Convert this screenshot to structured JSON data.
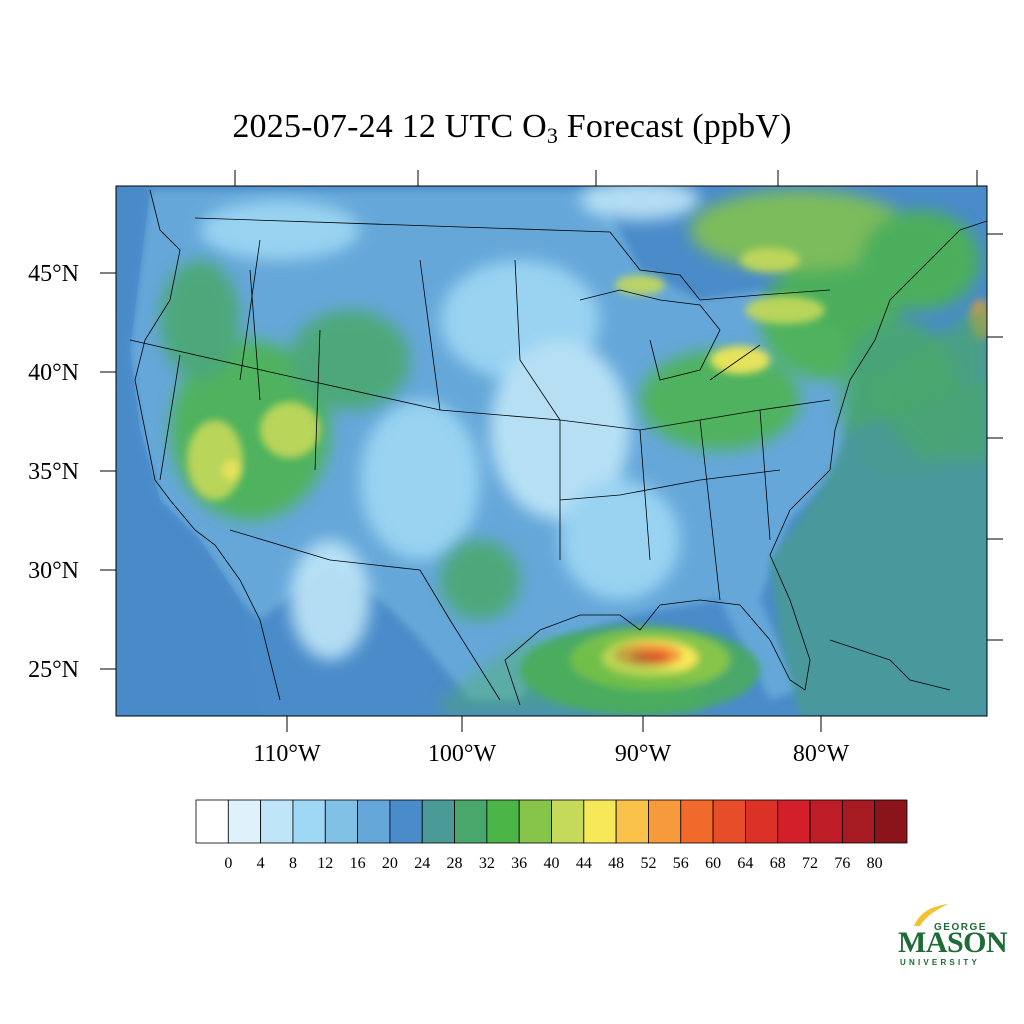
{
  "title": {
    "prefix": "2025-07-24 12 UTC O",
    "subscript": "3",
    "suffix": " Forecast (ppbV)"
  },
  "map": {
    "lat_labels": [
      "45°N",
      "40°N",
      "35°N",
      "30°N",
      "25°N"
    ],
    "lon_labels": [
      "110°W",
      "100°W",
      "90°W",
      "80°W"
    ]
  },
  "colorbar": {
    "colors": [
      "#ffffff",
      "#dff1fb",
      "#bfe6f8",
      "#9fd8f4",
      "#82c1e6",
      "#65a7d9",
      "#4a8bc9",
      "#4a9a98",
      "#48a86b",
      "#4bb548",
      "#86c54a",
      "#c5d95a",
      "#f7e85a",
      "#f9c24b",
      "#f79a3c",
      "#f26a2b",
      "#e74d28",
      "#dc3127",
      "#d21f2a",
      "#be1c27",
      "#a61a22",
      "#8b141a"
    ],
    "labels": [
      "0",
      "4",
      "8",
      "12",
      "16",
      "20",
      "24",
      "28",
      "32",
      "36",
      "40",
      "44",
      "48",
      "52",
      "56",
      "60",
      "64",
      "68",
      "72",
      "76",
      "80"
    ]
  },
  "logo": {
    "top": "GEORGE",
    "main": "MASON",
    "bottom": "UNIVERSITY"
  }
}
